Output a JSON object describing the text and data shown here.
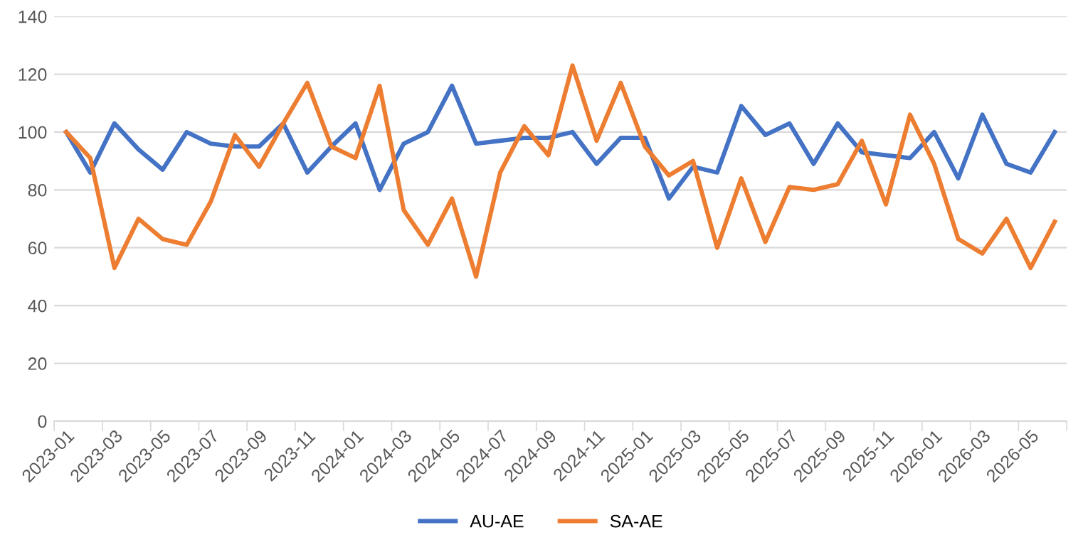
{
  "chart_data": {
    "type": "line",
    "categories": [
      "2023-01",
      null,
      "2023-03",
      null,
      "2023-05",
      null,
      "2023-07",
      null,
      "2023-09",
      null,
      "2023-11",
      null,
      "2024-01",
      null,
      "2024-03",
      null,
      "2024-05",
      null,
      "2024-07",
      null,
      "2024-09",
      null,
      "2024-11",
      null,
      "2025-01",
      null,
      "2025-03",
      null,
      "2025-05",
      null,
      "2025-07",
      null,
      "2025-09",
      null,
      "2025-11",
      null,
      "2026-01",
      null,
      "2026-03",
      null,
      "2026-05",
      null
    ],
    "series": [
      {
        "name": "AU-AE",
        "color": "#4472c4",
        "values": [
          100,
          86,
          103,
          94,
          87,
          100,
          96,
          95,
          95,
          103,
          86,
          95,
          103,
          80,
          96,
          100,
          116,
          96,
          97,
          98,
          98,
          100,
          89,
          98,
          98,
          77,
          88,
          86,
          109,
          99,
          103,
          89,
          103,
          93,
          92,
          91,
          100,
          84,
          106,
          89,
          86,
          100
        ]
      },
      {
        "name": "SA-AE",
        "color": "#ed7d31",
        "values": [
          100,
          91,
          53,
          70,
          63,
          61,
          76,
          99,
          88,
          103,
          117,
          95,
          91,
          116,
          73,
          61,
          77,
          50,
          86,
          102,
          92,
          123,
          97,
          117,
          95,
          85,
          90,
          60,
          84,
          62,
          81,
          80,
          82,
          97,
          75,
          106,
          89,
          63,
          58,
          70,
          53,
          69
        ]
      }
    ],
    "ylim": [
      0,
      140
    ],
    "yticks": [
      0,
      20,
      40,
      60,
      80,
      100,
      120,
      140
    ],
    "grid": "y",
    "legend": "bottom",
    "marker": "none",
    "line_style": "solid"
  }
}
